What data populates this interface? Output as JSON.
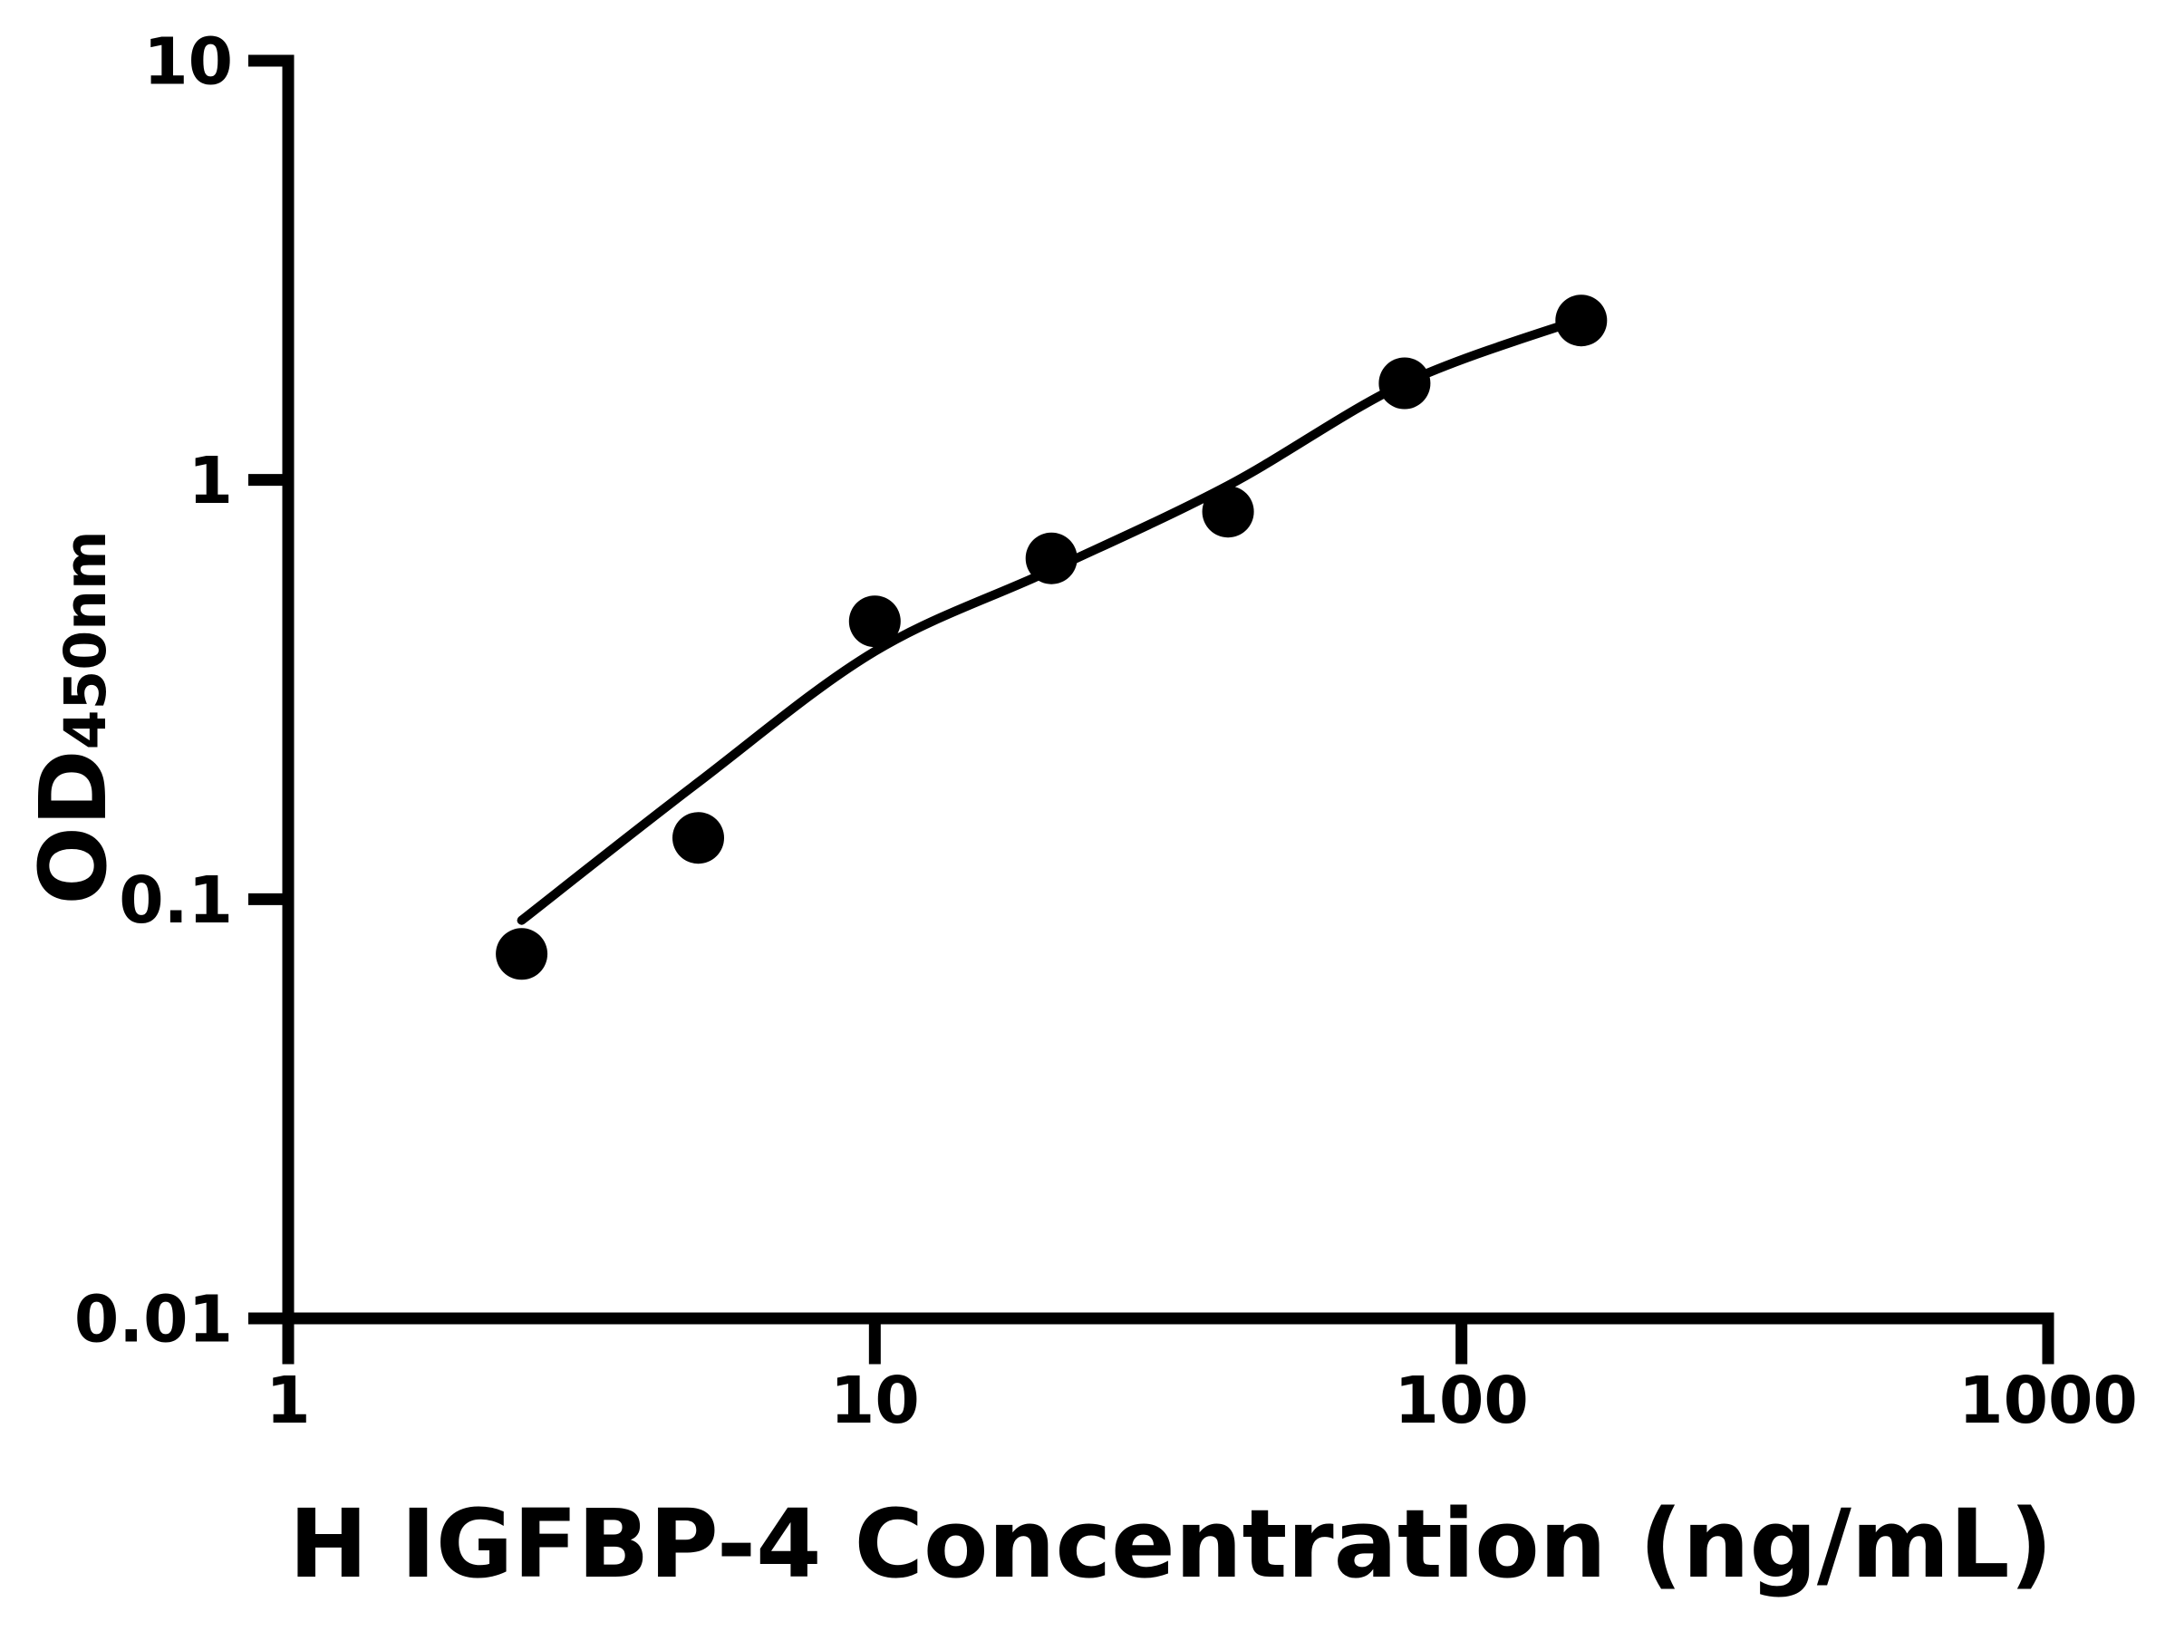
{
  "page": {
    "background": "#ffffff"
  },
  "colors": {
    "axis": "#000000",
    "tick": "#000000",
    "text": "#000000",
    "marker": "#000000",
    "curve": "#000000",
    "background": "#ffffff"
  },
  "chart_data": {
    "type": "scatter",
    "subtype": "elisa-standard-curve",
    "title": "",
    "xlabel": "H IGFBP-4 Concentration (ng/mL)",
    "ylabel_main": "OD",
    "ylabel_sub": "450nm",
    "x_scale": "log",
    "y_scale": "log",
    "xlim": [
      1,
      1000
    ],
    "ylim": [
      0.01,
      10
    ],
    "grid": false,
    "legend": false,
    "x_ticks": [
      {
        "value": 1,
        "label": "1"
      },
      {
        "value": 10,
        "label": "10"
      },
      {
        "value": 100,
        "label": "100"
      },
      {
        "value": 1000,
        "label": "1000"
      }
    ],
    "y_ticks": [
      {
        "value": 0.01,
        "label": "0.01"
      },
      {
        "value": 0.1,
        "label": "0.1"
      },
      {
        "value": 1,
        "label": "1"
      },
      {
        "value": 10,
        "label": "10"
      }
    ],
    "series": [
      {
        "name": "standards",
        "marker": "circle",
        "color": "#000000",
        "points": [
          [
            2.5,
            0.074
          ],
          [
            5,
            0.14
          ],
          [
            10,
            0.46
          ],
          [
            20,
            0.65
          ],
          [
            40,
            0.84
          ],
          [
            80,
            1.7
          ],
          [
            160,
            2.4
          ]
        ]
      }
    ],
    "fit_curve": {
      "name": "fitted-standard-curve",
      "color": "#000000",
      "points": [
        [
          2.5,
          0.089
        ],
        [
          5,
          0.19
        ],
        [
          10,
          0.39
        ],
        [
          20,
          0.61
        ],
        [
          40,
          0.97
        ],
        [
          80,
          1.7
        ],
        [
          160,
          2.42
        ]
      ]
    }
  }
}
